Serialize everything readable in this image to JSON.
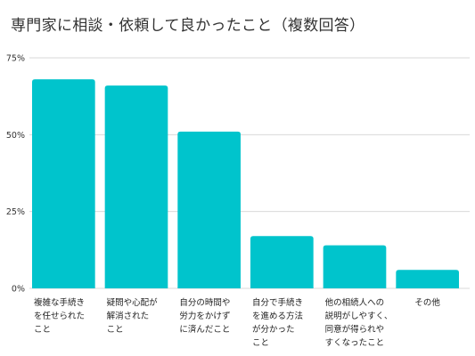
{
  "chart_data": {
    "type": "bar",
    "title": "専門家に相談・依頼して良かったこと（複数回答）",
    "xlabel": "",
    "ylabel": "",
    "ylim": [
      0,
      75
    ],
    "y_ticks": [
      0,
      25,
      50,
      75
    ],
    "y_tick_labels": [
      "0%",
      "25%",
      "50%",
      "75%"
    ],
    "grid": true,
    "legend": "none",
    "bar_color": "#00C4CC",
    "categories": [
      [
        "複雑な手続き",
        "を任せられた",
        "こと"
      ],
      [
        "疑問や心配が",
        "解消された",
        "こと"
      ],
      [
        "自分の時間や",
        "労力をかけず",
        "に済んだこと"
      ],
      [
        "自分で手続き",
        "を進める方法",
        "が分かった",
        "こと"
      ],
      [
        "他の相続人への",
        "説明がしやすく、",
        "同意が得られや",
        "すくなったこと"
      ],
      [
        "その他"
      ]
    ],
    "values": [
      68,
      66,
      51,
      17,
      14,
      6
    ]
  }
}
